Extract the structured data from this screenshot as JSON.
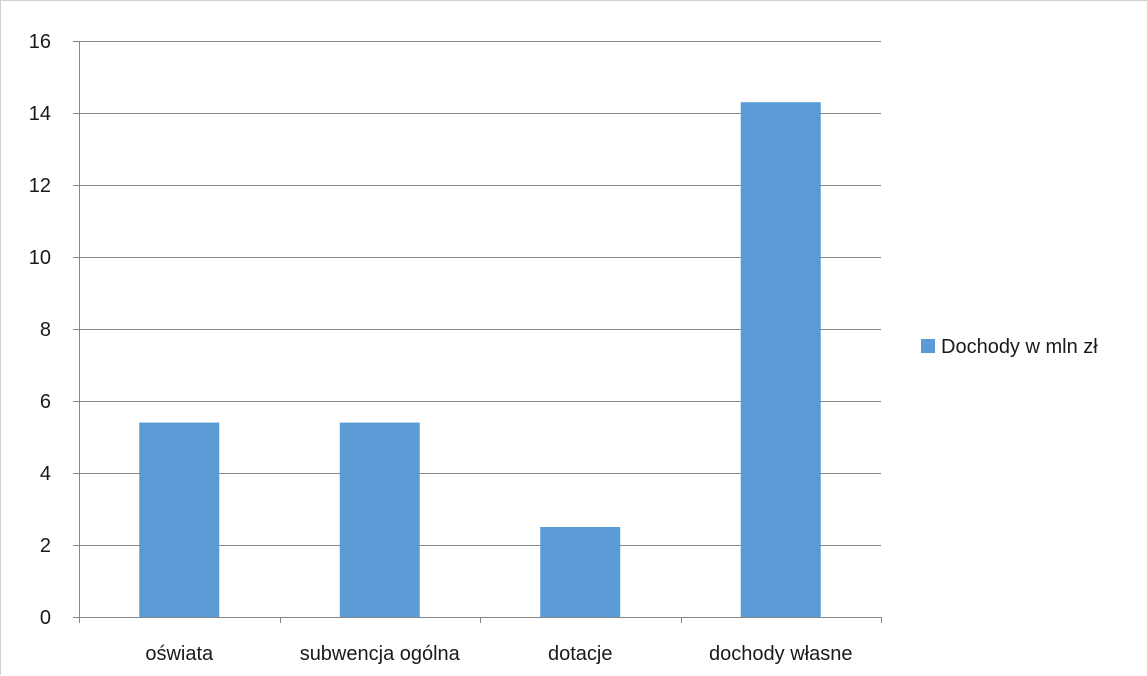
{
  "chart_data": {
    "type": "bar",
    "title": "",
    "xlabel": "",
    "ylabel": "",
    "categories": [
      "oświata",
      "subwencja ogólna",
      "dotacje",
      "dochody własne"
    ],
    "series": [
      {
        "name": "Dochody w mln zł",
        "values": [
          5.4,
          5.4,
          2.5,
          14.3
        ],
        "color": "#5B9BD5"
      }
    ],
    "ylim": [
      0,
      16
    ],
    "yticks": [
      "0",
      "2",
      "4",
      "6",
      "8",
      "10",
      "12",
      "14",
      "16"
    ],
    "grid": true,
    "legend_position": "right"
  }
}
